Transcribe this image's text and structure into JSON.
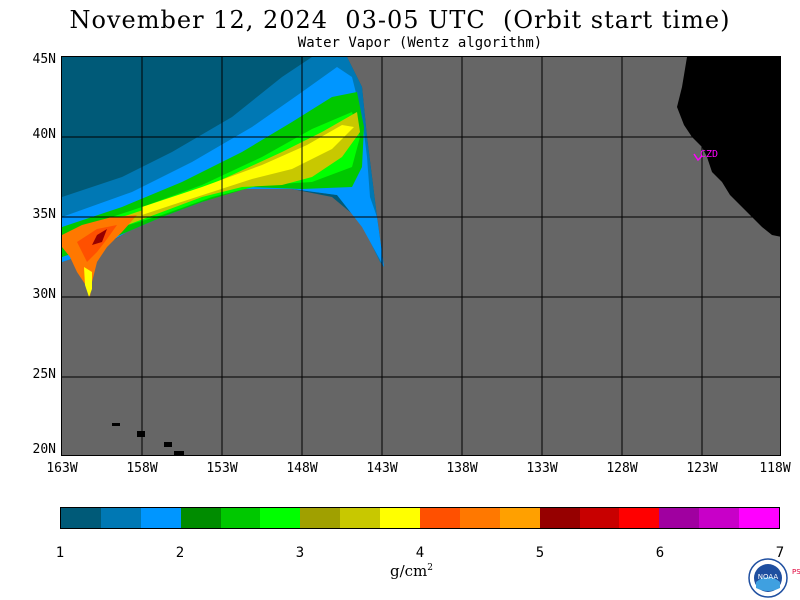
{
  "header": {
    "title": "November 12, 2024  03-05 UTC  (Orbit start time)",
    "subtitle": "Water Vapor (Wentz algorithm)"
  },
  "map": {
    "lat_labels": [
      "45N",
      "40N",
      "35N",
      "30N",
      "25N",
      "20N"
    ],
    "lon_labels": [
      "163W",
      "158W",
      "153W",
      "148W",
      "143W",
      "138W",
      "133W",
      "128W",
      "123W",
      "118W"
    ],
    "station_label": "CZD",
    "background_color": "#666666",
    "land_color": "#000000",
    "station_color": "#ff00ff"
  },
  "colorbar": {
    "tick_labels": [
      "1",
      "2",
      "3",
      "4",
      "5",
      "6",
      "7"
    ],
    "unit": "g/cm",
    "unit_exponent": "2",
    "colors": [
      "#005a78",
      "#0078b4",
      "#0096ff",
      "#008c00",
      "#00c800",
      "#00ff00",
      "#a0a000",
      "#c8c800",
      "#ffff00",
      "#ff5000",
      "#ff7800",
      "#ffa000",
      "#960000",
      "#c80000",
      "#ff0000",
      "#a000a0",
      "#c800c8",
      "#ff00ff"
    ]
  },
  "logo": {
    "text": "NOAA",
    "side_text": "PSL"
  }
}
